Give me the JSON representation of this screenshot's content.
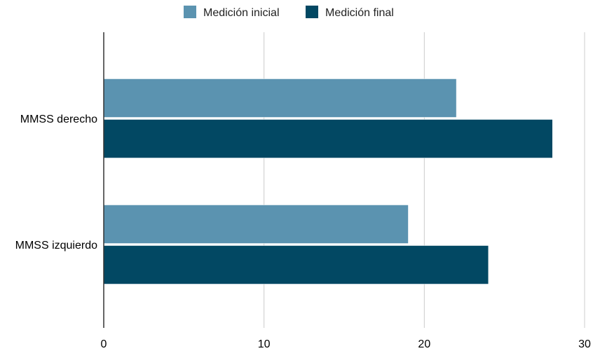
{
  "chart_data": {
    "type": "bar",
    "orientation": "horizontal",
    "categories": [
      "MMSS derecho",
      "MMSS izquierdo"
    ],
    "series": [
      {
        "name": "Medición inicial",
        "values": [
          22,
          19
        ],
        "color": "#5b93b0"
      },
      {
        "name": "Medición final",
        "values": [
          28,
          24
        ],
        "color": "#024863"
      }
    ],
    "xticks": [
      "0",
      "10",
      "20",
      "30"
    ],
    "xlim": [
      0,
      30
    ],
    "grid": true,
    "legend_position": "top",
    "title": "",
    "xlabel": "",
    "ylabel": ""
  }
}
